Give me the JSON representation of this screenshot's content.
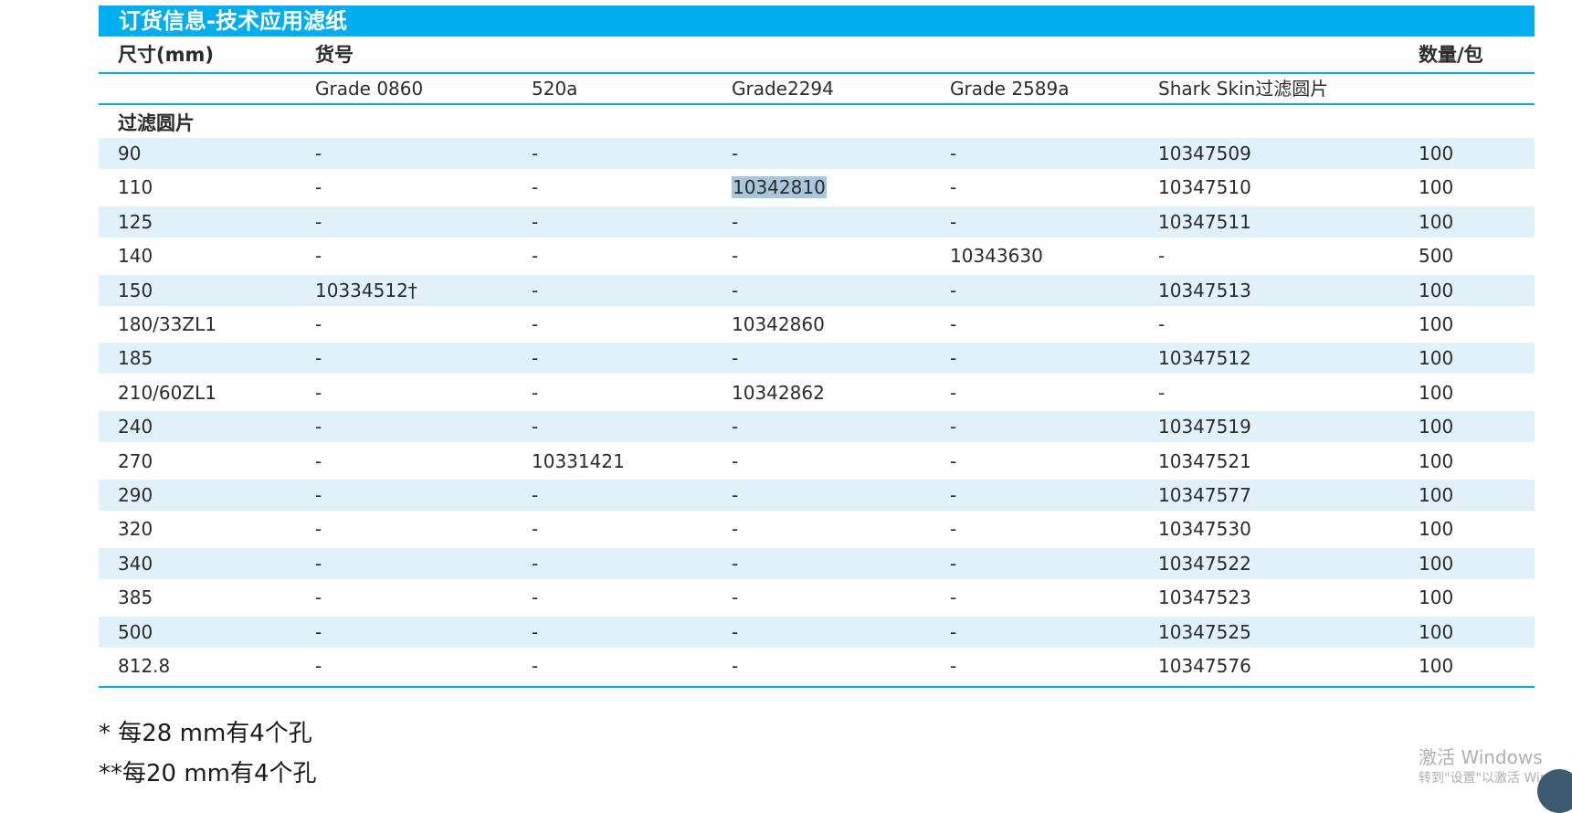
{
  "title": "订货信息-技术应用滤纸",
  "header": {
    "size": "尺寸(mm)",
    "catalog": "货号",
    "qty": "数量/包",
    "grades": [
      "Grade 0860",
      "520a",
      "Grade2294",
      "Grade 2589a",
      "Shark Skin过滤圆片"
    ]
  },
  "section_label": "过滤圆片",
  "rows": [
    [
      "90",
      "-",
      "-",
      "-",
      "-",
      "10347509",
      "100"
    ],
    [
      "110",
      "-",
      "-",
      "10342810",
      "-",
      "10347510",
      "100"
    ],
    [
      "125",
      "-",
      "-",
      "-",
      "-",
      "10347511",
      "100"
    ],
    [
      "140",
      "-",
      "-",
      "-",
      "10343630",
      "-",
      "500"
    ],
    [
      "150",
      "10334512†",
      "-",
      "-",
      "-",
      "10347513",
      "100"
    ],
    [
      "180/33ZL1",
      "-",
      "-",
      "10342860",
      "-",
      "-",
      "100"
    ],
    [
      "185",
      "-",
      "-",
      "-",
      "-",
      "10347512",
      "100"
    ],
    [
      "210/60ZL1",
      "-",
      "-",
      "10342862",
      "-",
      "-",
      "100"
    ],
    [
      "240",
      "-",
      "-",
      "-",
      "-",
      "10347519",
      "100"
    ],
    [
      "270",
      "-",
      "10331421",
      "-",
      "-",
      "10347521",
      "100"
    ],
    [
      "290",
      "-",
      "-",
      "-",
      "-",
      "10347577",
      "100"
    ],
    [
      "320",
      "-",
      "-",
      "-",
      "-",
      "10347530",
      "100"
    ],
    [
      "340",
      "-",
      "-",
      "-",
      "-",
      "10347522",
      "100"
    ],
    [
      "385",
      "-",
      "-",
      "-",
      "-",
      "10347523",
      "100"
    ],
    [
      "500",
      "-",
      "-",
      "-",
      "-",
      "10347525",
      "100"
    ],
    [
      "812.8",
      "-",
      "-",
      "-",
      "-",
      "10347576",
      "100"
    ]
  ],
  "footnotes": [
    "* 每28 mm有4个孔",
    "**每20 mm有4个孔"
  ],
  "watermark": {
    "line1": "激活 Windows",
    "line2": "转到\"设置\"以激活 Windows"
  },
  "colors": {
    "accent": "#00aeef",
    "row_shade": "#e1f1fa",
    "selection": "#a8c7dd"
  }
}
